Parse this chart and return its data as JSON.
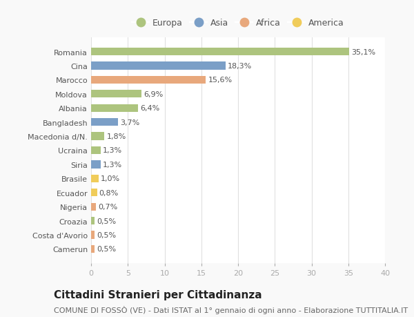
{
  "categories": [
    "Romania",
    "Cina",
    "Marocco",
    "Moldova",
    "Albania",
    "Bangladesh",
    "Macedonia d/N.",
    "Ucraina",
    "Siria",
    "Brasile",
    "Ecuador",
    "Nigeria",
    "Croazia",
    "Costa d'Avorio",
    "Camerun"
  ],
  "values": [
    35.1,
    18.3,
    15.6,
    6.9,
    6.4,
    3.7,
    1.8,
    1.3,
    1.3,
    1.0,
    0.8,
    0.7,
    0.5,
    0.5,
    0.5
  ],
  "labels": [
    "35,1%",
    "18,3%",
    "15,6%",
    "6,9%",
    "6,4%",
    "3,7%",
    "1,8%",
    "1,3%",
    "1,3%",
    "1,0%",
    "0,8%",
    "0,7%",
    "0,5%",
    "0,5%",
    "0,5%"
  ],
  "continents": [
    "Europa",
    "Asia",
    "Africa",
    "Europa",
    "Europa",
    "Asia",
    "Europa",
    "Europa",
    "Asia",
    "America",
    "America",
    "Africa",
    "Europa",
    "Africa",
    "Africa"
  ],
  "colors": {
    "Europa": "#adc47e",
    "Asia": "#7b9fc7",
    "Africa": "#e8a87c",
    "America": "#f0cc5a"
  },
  "legend_order": [
    "Europa",
    "Asia",
    "Africa",
    "America"
  ],
  "xlim": [
    0,
    40
  ],
  "xticks": [
    0,
    5,
    10,
    15,
    20,
    25,
    30,
    35,
    40
  ],
  "title": "Cittadini Stranieri per Cittadinanza",
  "subtitle": "COMUNE DI FOSSÒ (VE) - Dati ISTAT al 1° gennaio di ogni anno - Elaborazione TUTTITALIA.IT",
  "background_color": "#f9f9f9",
  "plot_bg_color": "#ffffff",
  "grid_color": "#e0e0e0",
  "title_fontsize": 11,
  "subtitle_fontsize": 8,
  "label_fontsize": 8,
  "tick_fontsize": 8,
  "legend_fontsize": 9
}
